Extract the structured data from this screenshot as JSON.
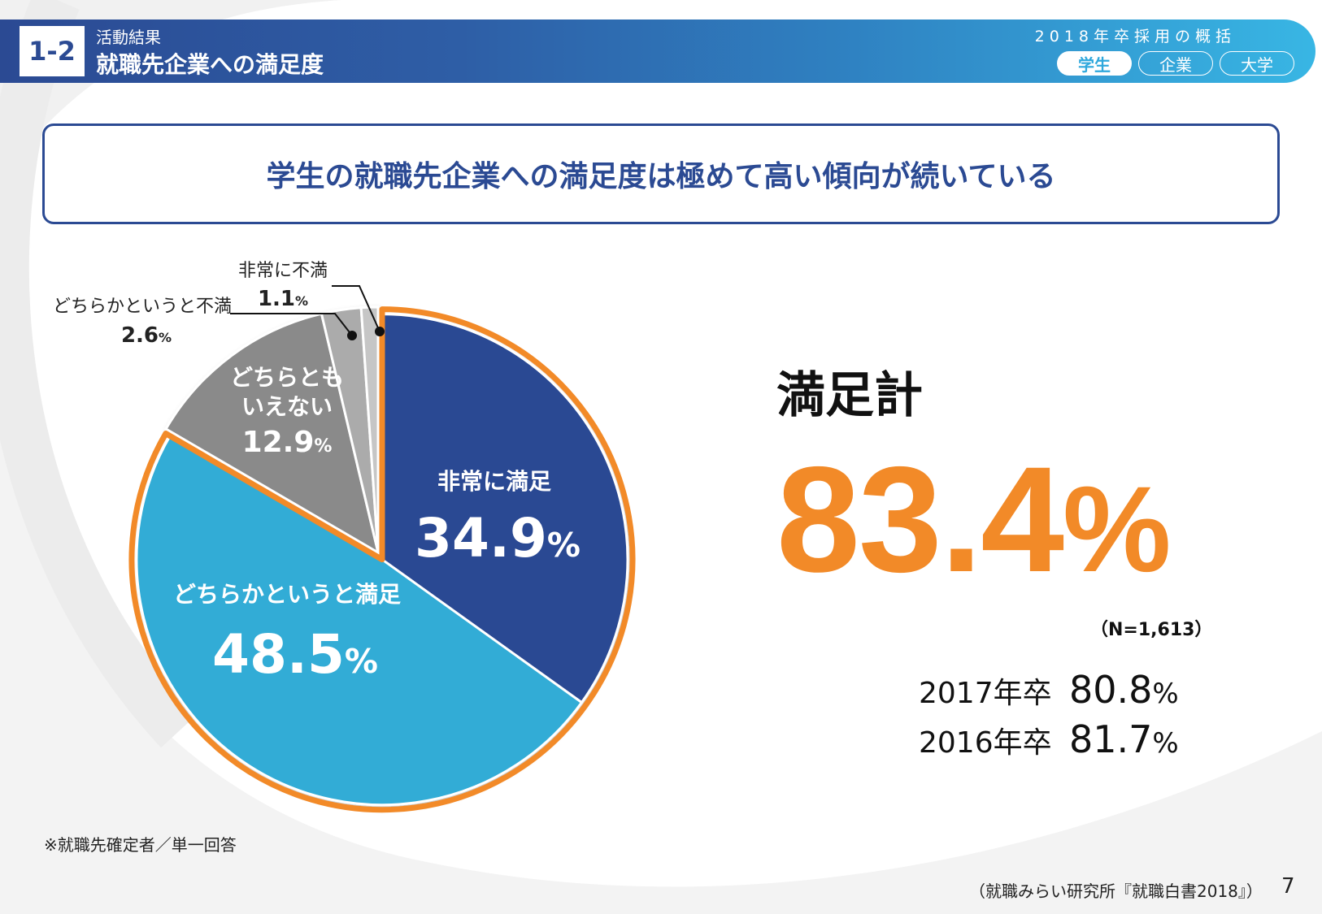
{
  "header": {
    "section_number": "1-2",
    "section_subtitle": "活動結果",
    "section_title": "就職先企業への満足度",
    "summary_title": "2018年卒採用の概括",
    "tabs": [
      {
        "label": "学生",
        "active": true
      },
      {
        "label": "企業",
        "active": false
      },
      {
        "label": "大学",
        "active": false
      }
    ]
  },
  "headline": "学生の就職先企業への満足度は極めて高い傾向が続いている",
  "total": {
    "label": "満足計",
    "value": "83.4",
    "unit": "%",
    "n": "（N=1,613）"
  },
  "previous": [
    {
      "year": "2017年卒",
      "value": "80.8",
      "unit": "%"
    },
    {
      "year": "2016年卒",
      "value": "81.7",
      "unit": "%"
    }
  ],
  "footnote": "※就職先確定者／単一回答",
  "source": "（就職みらい研究所『就職白書2018』）",
  "page_number": "7",
  "colors": {
    "navy": "#2b4a93",
    "sky": "#31acd6",
    "gray_dark": "#8a8a8a",
    "gray_light": "#ababab",
    "gray_lighter": "#c6c6c6",
    "orange": "#f28a28"
  },
  "chart_data": {
    "type": "pie",
    "title": "就職先企業への満足度",
    "start_angle_deg": 0,
    "direction": "clockwise",
    "highlight": "満足計（非常に満足＋どちらかというと満足）",
    "slices": [
      {
        "label": "非常に満足",
        "value": 34.9,
        "unit": "%",
        "color": "#2b4a93",
        "highlight": true
      },
      {
        "label": "どちらかというと満足",
        "value": 48.5,
        "unit": "%",
        "color": "#31acd6",
        "highlight": true
      },
      {
        "label": "どちらともいえない",
        "label_lines": [
          "どちらとも",
          "いえない"
        ],
        "value": 12.9,
        "unit": "%",
        "color": "#8a8a8a",
        "highlight": false
      },
      {
        "label": "どちらかというと不満",
        "value": 2.6,
        "unit": "%",
        "color": "#ababab",
        "highlight": false
      },
      {
        "label": "非常に不満",
        "value": 1.1,
        "unit": "%",
        "color": "#c6c6c6",
        "highlight": false
      }
    ]
  }
}
